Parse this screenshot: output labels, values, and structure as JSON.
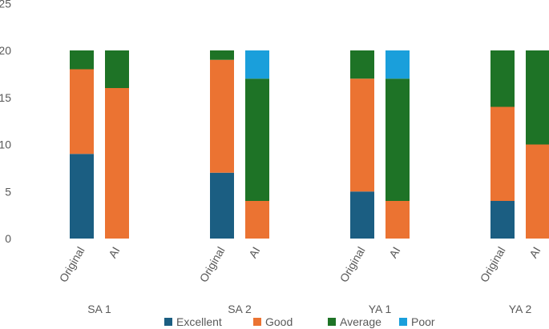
{
  "chart_data": {
    "type": "stacked-bar",
    "ylim": [
      0,
      25
    ],
    "yticks": [
      0,
      5,
      10,
      15,
      20,
      25
    ],
    "groups": [
      "SA 1",
      "SA 2",
      "YA 1",
      "YA 2"
    ],
    "bar_labels": [
      "Original",
      "AI"
    ],
    "series": [
      {
        "name": "Excellent",
        "color": "#1b5e82",
        "values": [
          [
            9,
            0
          ],
          [
            7,
            0
          ],
          [
            5,
            0
          ],
          [
            4,
            0
          ]
        ]
      },
      {
        "name": "Good",
        "color": "#eb7332",
        "values": [
          [
            9,
            16
          ],
          [
            12,
            4
          ],
          [
            12,
            4
          ],
          [
            10,
            10
          ]
        ]
      },
      {
        "name": "Average",
        "color": "#1e7326",
        "values": [
          [
            2,
            4
          ],
          [
            1,
            13
          ],
          [
            3,
            13
          ],
          [
            6,
            10
          ]
        ]
      },
      {
        "name": "Poor",
        "color": "#1a9fdb",
        "values": [
          [
            0,
            0
          ],
          [
            0,
            3
          ],
          [
            0,
            3
          ],
          [
            0,
            0
          ]
        ]
      }
    ],
    "legend_position": "bottom",
    "grid": false
  }
}
